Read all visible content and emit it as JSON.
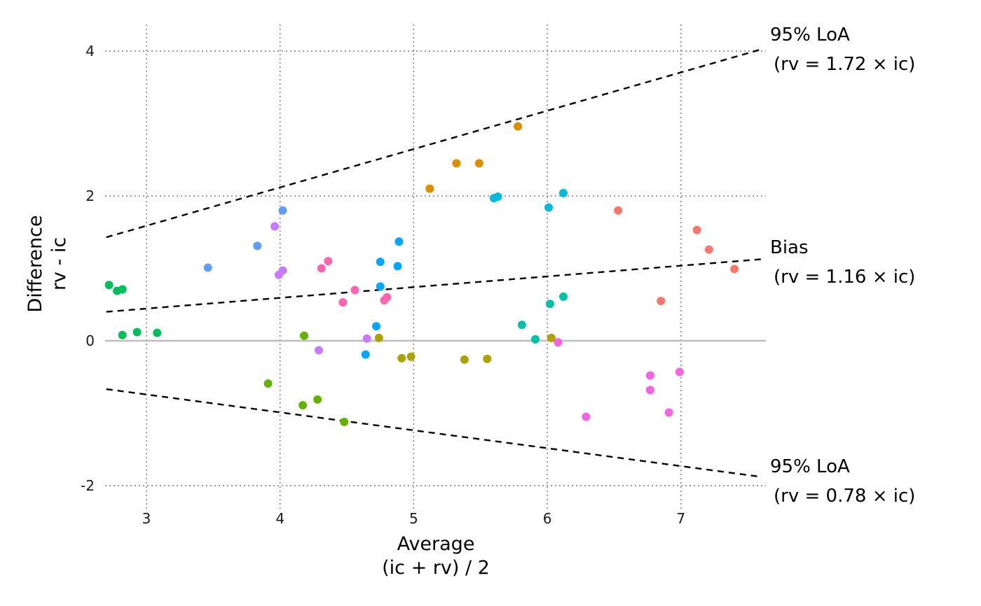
{
  "chart_data": {
    "type": "scatter",
    "title": "",
    "xlabel": [
      "Average",
      "(ic + rv) / 2"
    ],
    "ylabel": [
      "Difference",
      "rv - ic"
    ],
    "xlim": [
      2.7,
      7.6
    ],
    "ylim": [
      -2.2,
      4.3
    ],
    "x_ticks": [
      3,
      4,
      5,
      6,
      7
    ],
    "y_ticks": [
      -2,
      0,
      2,
      4
    ],
    "x_tick_labels": [
      "3",
      "4",
      "5",
      "6",
      "7"
    ],
    "y_tick_labels": [
      "-2",
      "0",
      "2",
      "4"
    ],
    "grid": "dotted, major ticks",
    "zero_line": {
      "y": 0,
      "color": "#bdbdbd"
    },
    "reference_lines": [
      {
        "name": "upper_loa",
        "label_lines": [
          "95% LoA",
          "(rv = 1.72 × ic)"
        ],
        "slope_ratio": 1.72,
        "label_position": "right-top"
      },
      {
        "name": "bias",
        "label_lines": [
          "Bias",
          "(rv = 1.16 × ic)"
        ],
        "slope_ratio": 1.16,
        "label_position": "right-middle"
      },
      {
        "name": "lower_loa",
        "label_lines": [
          "95% LoA",
          "(rv = 0.78 × ic)"
        ],
        "slope_ratio": 0.78,
        "label_position": "right-bottom"
      }
    ],
    "series": [
      {
        "color": "#F8766D",
        "points": [
          [
            6.53,
            1.8
          ],
          [
            7.12,
            1.53
          ],
          [
            7.21,
            1.26
          ],
          [
            7.4,
            0.99
          ],
          [
            6.85,
            0.55
          ]
        ]
      },
      {
        "color": "#DB8E00",
        "points": [
          [
            5.78,
            2.96
          ],
          [
            5.32,
            2.45
          ],
          [
            5.49,
            2.45
          ],
          [
            5.12,
            2.1
          ]
        ]
      },
      {
        "color": "#AEA200",
        "points": [
          [
            4.74,
            0.04
          ],
          [
            4.91,
            -0.24
          ],
          [
            4.98,
            -0.22
          ],
          [
            5.38,
            -0.26
          ],
          [
            5.55,
            -0.25
          ],
          [
            6.03,
            0.04
          ]
        ]
      },
      {
        "color": "#64B200",
        "points": [
          [
            4.18,
            0.07
          ],
          [
            3.91,
            -0.59
          ],
          [
            4.17,
            -0.89
          ],
          [
            4.28,
            -0.81
          ],
          [
            4.48,
            -1.12
          ]
        ]
      },
      {
        "color": "#00BD5C",
        "points": [
          [
            2.72,
            0.77
          ],
          [
            2.78,
            0.69
          ],
          [
            2.82,
            0.71
          ],
          [
            2.82,
            0.08
          ],
          [
            2.93,
            0.12
          ],
          [
            3.08,
            0.11
          ]
        ]
      },
      {
        "color": "#00C1A7",
        "points": [
          [
            6.02,
            0.51
          ],
          [
            6.12,
            0.61
          ],
          [
            5.81,
            0.22
          ],
          [
            5.91,
            0.02
          ]
        ]
      },
      {
        "color": "#00BADE",
        "points": [
          [
            5.6,
            1.97
          ],
          [
            5.63,
            1.99
          ],
          [
            6.01,
            1.84
          ],
          [
            6.12,
            2.04
          ]
        ]
      },
      {
        "color": "#00A6FF",
        "points": [
          [
            4.89,
            1.37
          ],
          [
            4.75,
            1.09
          ],
          [
            4.88,
            1.03
          ],
          [
            4.75,
            0.75
          ],
          [
            4.72,
            0.2
          ],
          [
            4.64,
            -0.19
          ]
        ]
      },
      {
        "color": "#619CFF",
        "points": [
          [
            3.46,
            1.01
          ],
          [
            3.83,
            1.31
          ],
          [
            4.02,
            1.8
          ]
        ]
      },
      {
        "color": "#C77CFF",
        "points": [
          [
            3.96,
            1.58
          ],
          [
            3.99,
            0.91
          ],
          [
            4.02,
            0.97
          ],
          [
            4.29,
            -0.13
          ],
          [
            4.65,
            0.03
          ]
        ]
      },
      {
        "color": "#F564E3",
        "points": [
          [
            6.08,
            -0.02
          ],
          [
            6.77,
            -0.48
          ],
          [
            6.77,
            -0.68
          ],
          [
            6.99,
            -0.43
          ],
          [
            6.91,
            -0.99
          ],
          [
            6.29,
            -1.05
          ]
        ]
      },
      {
        "color": "#FF64B0",
        "points": [
          [
            4.31,
            1.0
          ],
          [
            4.36,
            1.1
          ],
          [
            4.47,
            0.53
          ],
          [
            4.56,
            0.7
          ],
          [
            4.78,
            0.56
          ],
          [
            4.8,
            0.6
          ]
        ]
      }
    ]
  }
}
